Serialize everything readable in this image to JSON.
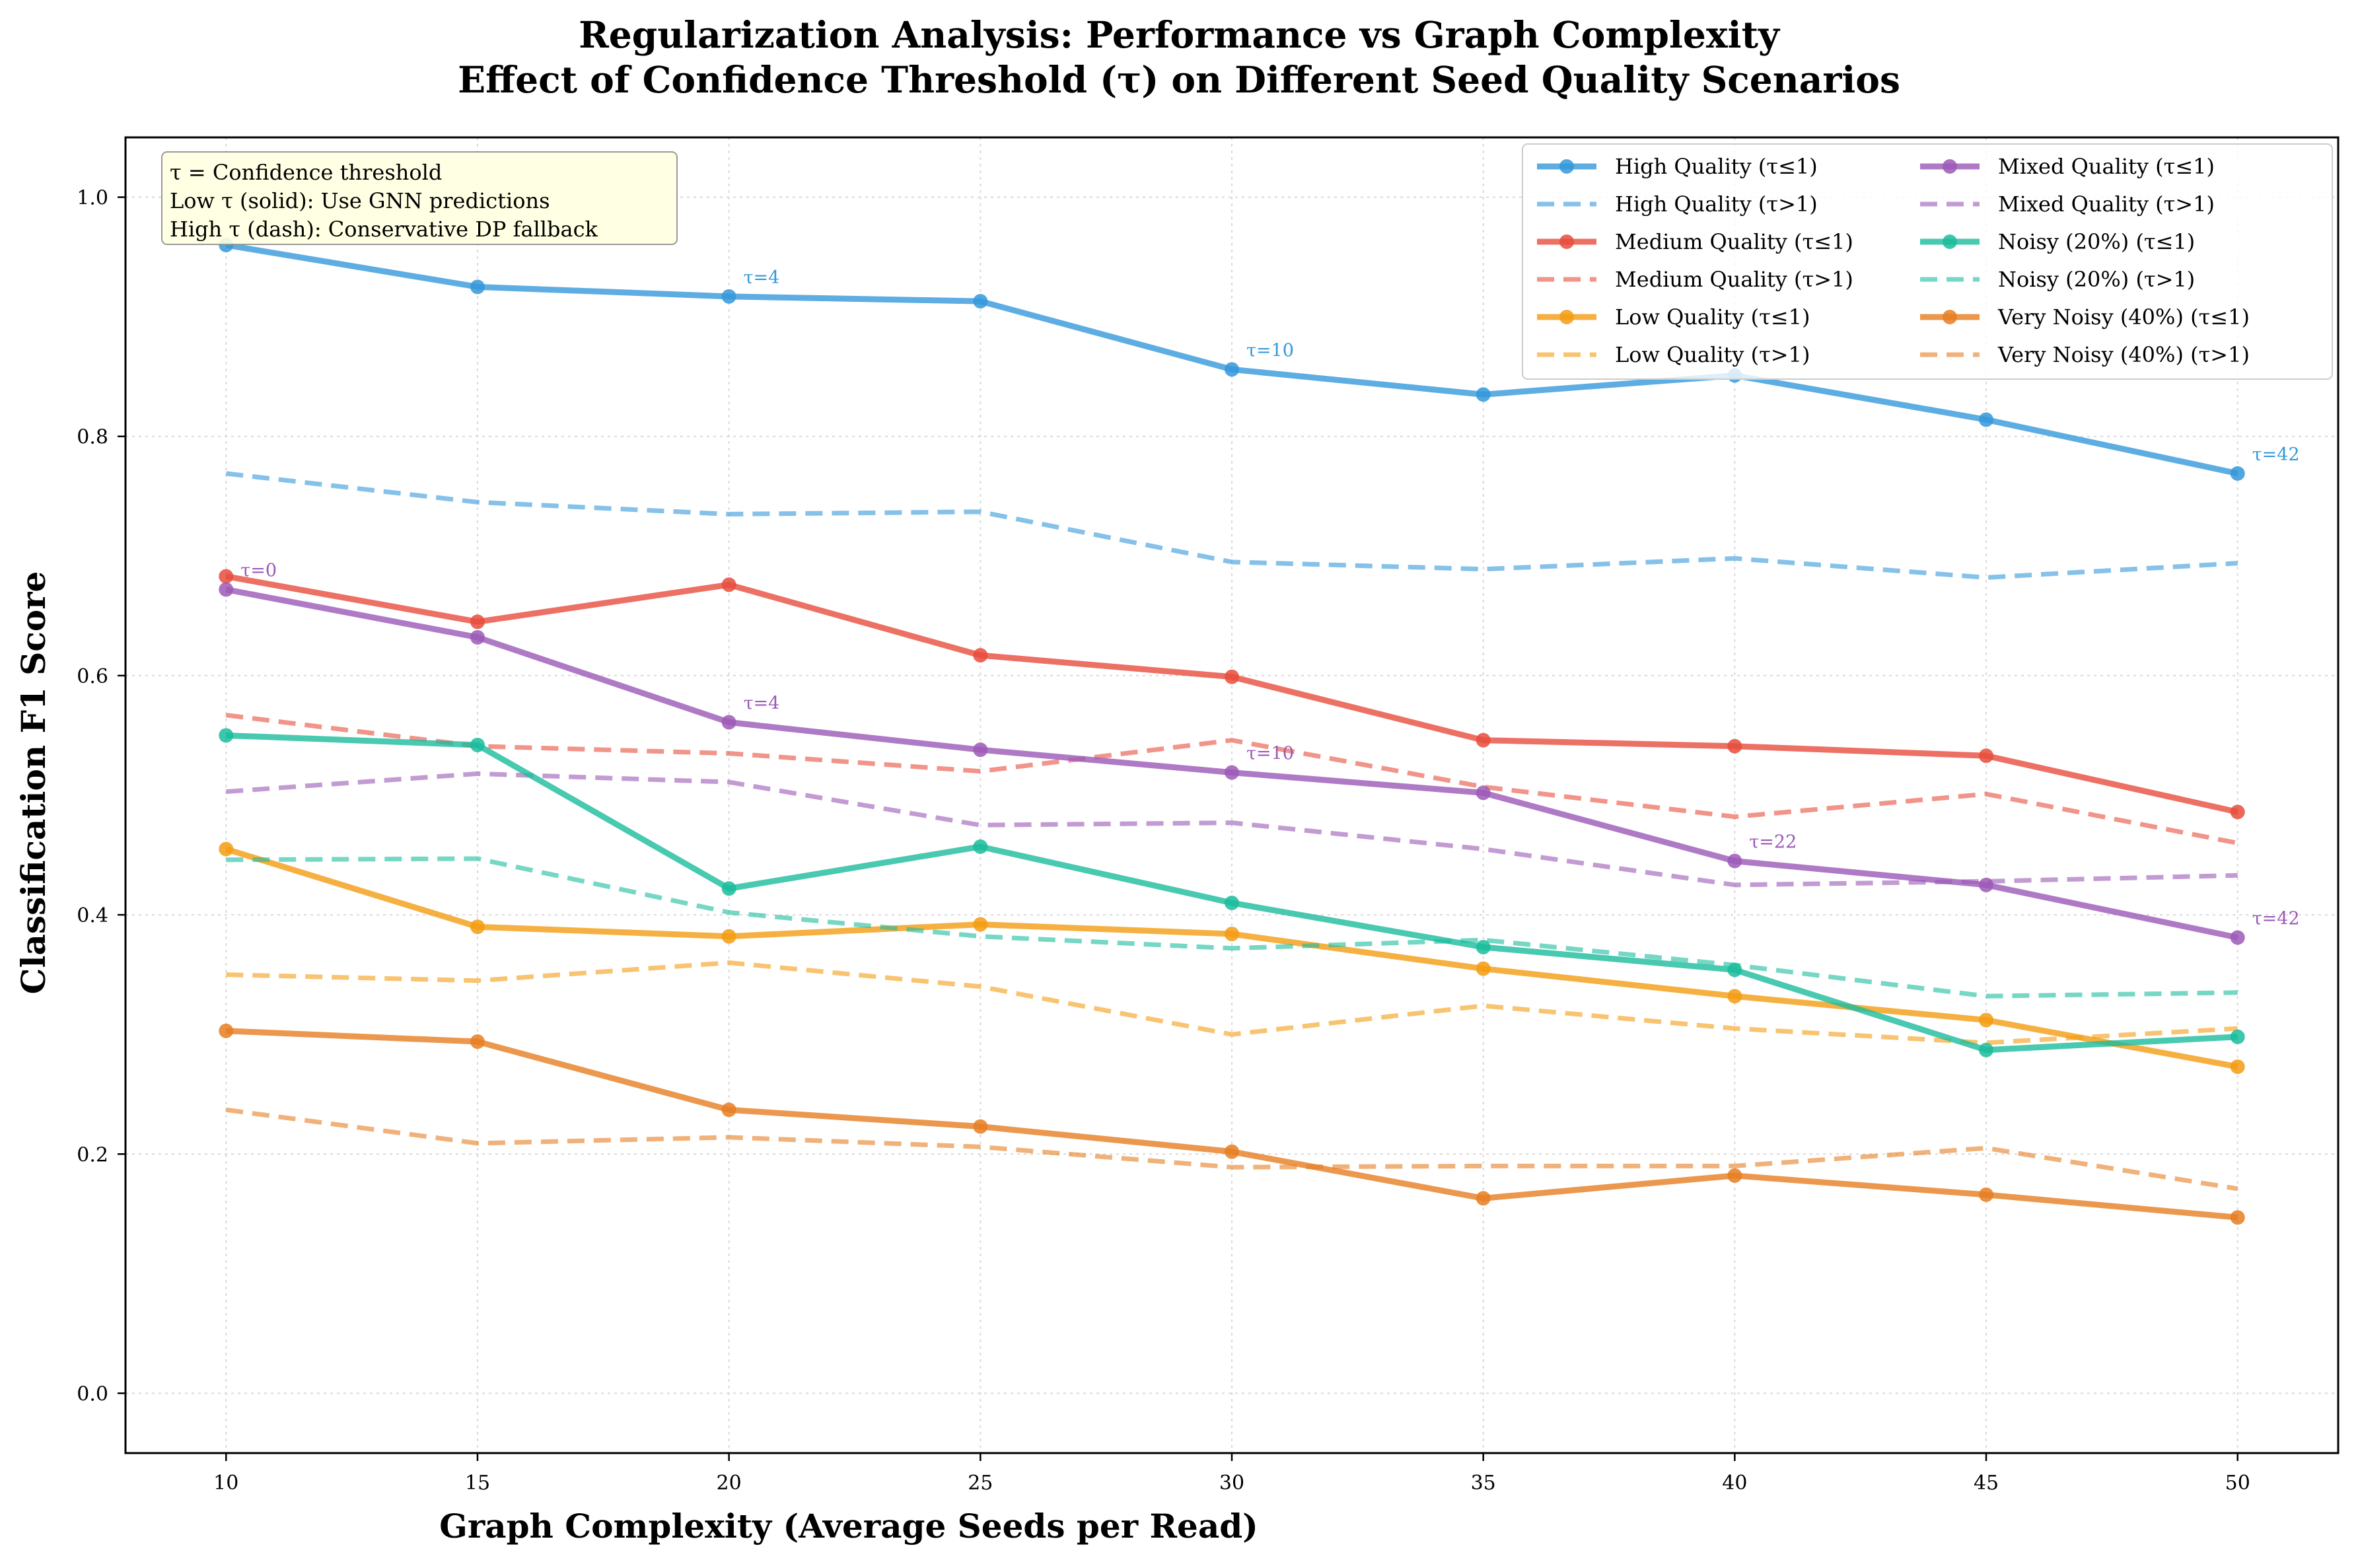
{
  "chart_data": {
    "type": "line",
    "title": "Regularization Analysis: Performance vs Graph Complexity",
    "subtitle": "Effect of Confidence Threshold (τ) on Different Seed Quality Scenarios",
    "xlabel": "Graph Complexity (Average Seeds per Read)",
    "ylabel": "Classification F1 Score",
    "x": [
      10,
      15,
      20,
      25,
      30,
      35,
      40,
      45,
      50
    ],
    "xlim": [
      8,
      52
    ],
    "ylim": [
      -0.05,
      1.05
    ],
    "xticks": [
      10,
      15,
      20,
      25,
      30,
      35,
      40,
      45,
      50
    ],
    "yticks": [
      0.0,
      0.2,
      0.4,
      0.6,
      0.8,
      1.0
    ],
    "grid": true,
    "legend_position": "top-right",
    "info_box": {
      "lines": [
        "τ = Confidence threshold",
        "Low τ (solid): Use GNN predictions",
        "High τ (dash): Conservative DP fallback"
      ],
      "background": "#ffffe0"
    },
    "series": [
      {
        "name": "High Quality (τ≤1)",
        "style": "solid",
        "color": "#3498db",
        "values": [
          0.96,
          0.925,
          0.917,
          0.913,
          0.856,
          0.835,
          0.851,
          0.814,
          0.769
        ]
      },
      {
        "name": "High Quality (τ>1)",
        "style": "dashed",
        "color": "#3498db",
        "values": [
          0.769,
          0.745,
          0.735,
          0.737,
          0.695,
          0.689,
          0.698,
          0.682,
          0.694
        ]
      },
      {
        "name": "Medium Quality (τ≤1)",
        "style": "solid",
        "color": "#e74c3c",
        "values": [
          0.683,
          0.645,
          0.676,
          0.617,
          0.599,
          0.546,
          0.541,
          0.533,
          0.486
        ]
      },
      {
        "name": "Medium Quality (τ>1)",
        "style": "dashed",
        "color": "#e74c3c",
        "values": [
          0.567,
          0.541,
          0.535,
          0.52,
          0.546,
          0.507,
          0.482,
          0.501,
          0.46
        ]
      },
      {
        "name": "Low Quality (τ≤1)",
        "style": "solid",
        "color": "#f39c12",
        "values": [
          0.455,
          0.39,
          0.382,
          0.392,
          0.384,
          0.355,
          0.332,
          0.312,
          0.273
        ]
      },
      {
        "name": "Low Quality (τ>1)",
        "style": "dashed",
        "color": "#f39c12",
        "values": [
          0.35,
          0.345,
          0.36,
          0.34,
          0.3,
          0.324,
          0.305,
          0.293,
          0.305
        ]
      },
      {
        "name": "Mixed Quality (τ≤1)",
        "style": "solid",
        "color": "#9b59b6",
        "values": [
          0.672,
          0.632,
          0.561,
          0.538,
          0.519,
          0.502,
          0.445,
          0.425,
          0.381
        ]
      },
      {
        "name": "Mixed Quality (τ>1)",
        "style": "dashed",
        "color": "#9b59b6",
        "values": [
          0.503,
          0.518,
          0.511,
          0.475,
          0.477,
          0.455,
          0.425,
          0.428,
          0.433
        ]
      },
      {
        "name": "Noisy (20%) (τ≤1)",
        "style": "solid",
        "color": "#1abc9c",
        "values": [
          0.55,
          0.542,
          0.422,
          0.457,
          0.41,
          0.373,
          0.354,
          0.287,
          0.298
        ]
      },
      {
        "name": "Noisy (20%) (τ>1)",
        "style": "dashed",
        "color": "#1abc9c",
        "values": [
          0.446,
          0.447,
          0.402,
          0.382,
          0.372,
          0.379,
          0.358,
          0.332,
          0.335
        ]
      },
      {
        "name": "Very Noisy (40%) (τ≤1)",
        "style": "solid",
        "color": "#e67e22",
        "values": [
          0.303,
          0.294,
          0.237,
          0.223,
          0.202,
          0.163,
          0.182,
          0.166,
          0.147
        ]
      },
      {
        "name": "Very Noisy (40%) (τ>1)",
        "style": "dashed",
        "color": "#e67e22",
        "values": [
          0.237,
          0.209,
          0.214,
          0.206,
          0.189,
          0.19,
          0.19,
          0.205,
          0.171
        ]
      }
    ],
    "annotations": [
      {
        "text": "τ=4",
        "x": 20,
        "y": 0.917,
        "color": "#3498db"
      },
      {
        "text": "τ=10",
        "x": 30,
        "y": 0.856,
        "color": "#3498db"
      },
      {
        "text": "τ=42",
        "x": 50,
        "y": 0.769,
        "color": "#3498db"
      },
      {
        "text": "τ=0",
        "x": 10,
        "y": 0.672,
        "color": "#9b59b6"
      },
      {
        "text": "τ=4",
        "x": 20,
        "y": 0.561,
        "color": "#9b59b6"
      },
      {
        "text": "τ=10",
        "x": 30,
        "y": 0.519,
        "color": "#9b59b6"
      },
      {
        "text": "τ=22",
        "x": 40,
        "y": 0.445,
        "color": "#9b59b6"
      },
      {
        "text": "τ=42",
        "x": 50,
        "y": 0.381,
        "color": "#9b59b6"
      }
    ]
  }
}
